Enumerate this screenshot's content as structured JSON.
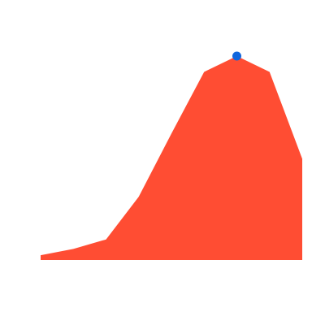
{
  "chart_data": {
    "type": "area",
    "title": "",
    "xlabel": "",
    "ylabel": "",
    "x": [
      0,
      1,
      2,
      3,
      4,
      5,
      6,
      7,
      8
    ],
    "values": [
      1.5,
      3.5,
      6.5,
      20,
      40,
      59.5,
      64.5,
      59.5,
      32
    ],
    "ylim": [
      0,
      64.5
    ],
    "grid": false,
    "axes_visible": false,
    "highlight": {
      "index": 6,
      "value": 64.5
    },
    "colors": {
      "fill": "#ff4d33",
      "highlight": "#1166dd",
      "background": "#ffffff"
    }
  }
}
